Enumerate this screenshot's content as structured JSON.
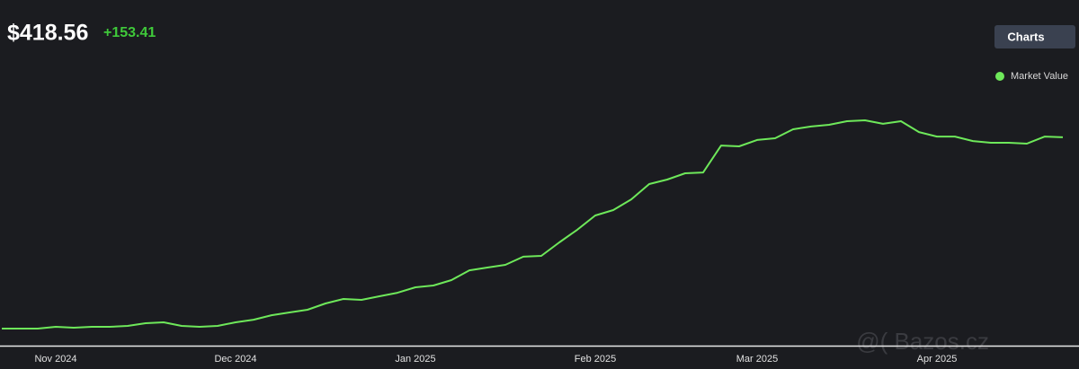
{
  "header": {
    "price": "$418.56",
    "change": "+153.41"
  },
  "button": "Charts",
  "watermark": "@( Bazos.cz",
  "chart_data": {
    "type": "line",
    "categories": [
      null,
      null,
      null,
      "Nov 2024",
      null,
      null,
      null,
      null,
      null,
      null,
      null,
      null,
      null,
      "Dec 2024",
      null,
      null,
      null,
      null,
      null,
      null,
      null,
      null,
      null,
      "Jan 2025",
      null,
      null,
      null,
      null,
      null,
      null,
      null,
      null,
      null,
      "Feb 2025",
      null,
      null,
      null,
      null,
      null,
      null,
      null,
      null,
      "Mar 2025",
      null,
      null,
      null,
      null,
      null,
      null,
      null,
      null,
      null,
      "Apr 2025",
      null,
      null,
      null,
      null,
      null,
      null,
      null
    ],
    "series": [
      {
        "name": "Market Value",
        "color": "#6ee85a",
        "values": [
          265.15,
          265.15,
          265.15,
          266.6,
          265.9,
          266.6,
          266.6,
          267.3,
          269.5,
          270.2,
          267.3,
          266.6,
          267.3,
          270.2,
          272.3,
          275.9,
          278.1,
          280.3,
          285.3,
          288.9,
          288.2,
          291.1,
          293.9,
          298.3,
          299.7,
          304,
          311.9,
          314.1,
          316.3,
          322.8,
          323.5,
          334.3,
          344.4,
          355.9,
          360.2,
          368.8,
          381.1,
          384.7,
          389.7,
          390.4,
          412,
          411.3,
          416.4,
          417.8,
          425,
          427.2,
          428.6,
          431.5,
          432.2,
          429.4,
          431.5,
          422.8,
          419.2,
          419.2,
          415.6,
          414.2,
          414.2,
          413.5,
          419.2,
          418.56
        ]
      }
    ],
    "legend": "top-right"
  }
}
